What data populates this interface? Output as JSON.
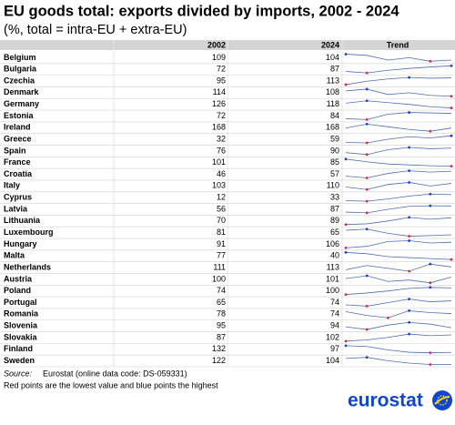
{
  "header": {
    "title": "EU goods total: exports divided by imports, 2002 - 2024",
    "subtitle": "(%, total = intra-EU + extra-EU)"
  },
  "table": {
    "columns": [
      "2002",
      "2024",
      "Trend"
    ],
    "rows": [
      {
        "country": "Belgium",
        "v2002": 109,
        "v2024": 104,
        "trend": [
          109,
          108,
          104,
          106,
          103,
          104
        ]
      },
      {
        "country": "Bulgaria",
        "v2002": 72,
        "v2024": 87,
        "trend": [
          72,
          68,
          75,
          80,
          84,
          87
        ]
      },
      {
        "country": "Czechia",
        "v2002": 95,
        "v2024": 113,
        "trend": [
          95,
          104,
          110,
          114,
          112,
          113
        ]
      },
      {
        "country": "Denmark",
        "v2002": 114,
        "v2024": 108,
        "trend": [
          114,
          116,
          110,
          112,
          109,
          108
        ]
      },
      {
        "country": "Germany",
        "v2002": 126,
        "v2024": 118,
        "trend": [
          126,
          130,
          127,
          124,
          120,
          118
        ]
      },
      {
        "country": "Estonia",
        "v2002": 72,
        "v2024": 84,
        "trend": [
          72,
          70,
          82,
          86,
          85,
          84
        ]
      },
      {
        "country": "Ireland",
        "v2002": 168,
        "v2024": 168,
        "trend": [
          168,
          190,
          175,
          160,
          150,
          168
        ]
      },
      {
        "country": "Greece",
        "v2002": 32,
        "v2024": 59,
        "trend": [
          32,
          30,
          45,
          55,
          50,
          59
        ]
      },
      {
        "country": "Spain",
        "v2002": 76,
        "v2024": 90,
        "trend": [
          76,
          70,
          85,
          92,
          88,
          90
        ]
      },
      {
        "country": "France",
        "v2002": 101,
        "v2024": 85,
        "trend": [
          101,
          95,
          90,
          88,
          86,
          85
        ]
      },
      {
        "country": "Croatia",
        "v2002": 46,
        "v2024": 57,
        "trend": [
          46,
          42,
          52,
          58,
          55,
          57
        ]
      },
      {
        "country": "Italy",
        "v2002": 103,
        "v2024": 110,
        "trend": [
          103,
          98,
          108,
          112,
          105,
          110
        ]
      },
      {
        "country": "Cyprus",
        "v2002": 12,
        "v2024": 33,
        "trend": [
          12,
          10,
          18,
          28,
          35,
          33
        ]
      },
      {
        "country": "Latvia",
        "v2002": 56,
        "v2024": 87,
        "trend": [
          56,
          52,
          70,
          85,
          88,
          87
        ]
      },
      {
        "country": "Lithuania",
        "v2002": 70,
        "v2024": 89,
        "trend": [
          70,
          72,
          80,
          90,
          85,
          89
        ]
      },
      {
        "country": "Luxembourg",
        "v2002": 81,
        "v2024": 65,
        "trend": [
          81,
          85,
          70,
          60,
          62,
          65
        ]
      },
      {
        "country": "Hungary",
        "v2002": 91,
        "v2024": 106,
        "trend": [
          91,
          95,
          108,
          110,
          104,
          106
        ]
      },
      {
        "country": "Malta",
        "v2002": 77,
        "v2024": 40,
        "trend": [
          77,
          70,
          55,
          50,
          45,
          40
        ]
      },
      {
        "country": "Netherlands",
        "v2002": 111,
        "v2024": 113,
        "trend": [
          111,
          114,
          112,
          110,
          115,
          113
        ]
      },
      {
        "country": "Austria",
        "v2002": 100,
        "v2024": 101,
        "trend": [
          100,
          102,
          98,
          99,
          97,
          101
        ]
      },
      {
        "country": "Poland",
        "v2002": 74,
        "v2024": 100,
        "trend": [
          74,
          80,
          88,
          98,
          102,
          100
        ]
      },
      {
        "country": "Portugal",
        "v2002": 65,
        "v2024": 74,
        "trend": [
          65,
          62,
          70,
          78,
          72,
          74
        ]
      },
      {
        "country": "Romania",
        "v2002": 78,
        "v2024": 74,
        "trend": [
          78,
          70,
          65,
          80,
          76,
          74
        ]
      },
      {
        "country": "Slovenia",
        "v2002": 95,
        "v2024": 94,
        "trend": [
          95,
          92,
          97,
          100,
          98,
          94
        ]
      },
      {
        "country": "Slovakia",
        "v2002": 87,
        "v2024": 102,
        "trend": [
          87,
          90,
          96,
          104,
          100,
          102
        ]
      },
      {
        "country": "Finland",
        "v2002": 132,
        "v2024": 97,
        "trend": [
          132,
          128,
          110,
          98,
          95,
          97
        ]
      },
      {
        "country": "Sweden",
        "v2002": 122,
        "v2024": 104,
        "trend": [
          122,
          125,
          115,
          108,
          104,
          104
        ]
      }
    ]
  },
  "footer": {
    "source_label": "Source:",
    "source": "Eurostat (online data code: DS-059331)",
    "note": "Red points are the lowest value and blue points the highest",
    "logo": "eurostat"
  }
}
